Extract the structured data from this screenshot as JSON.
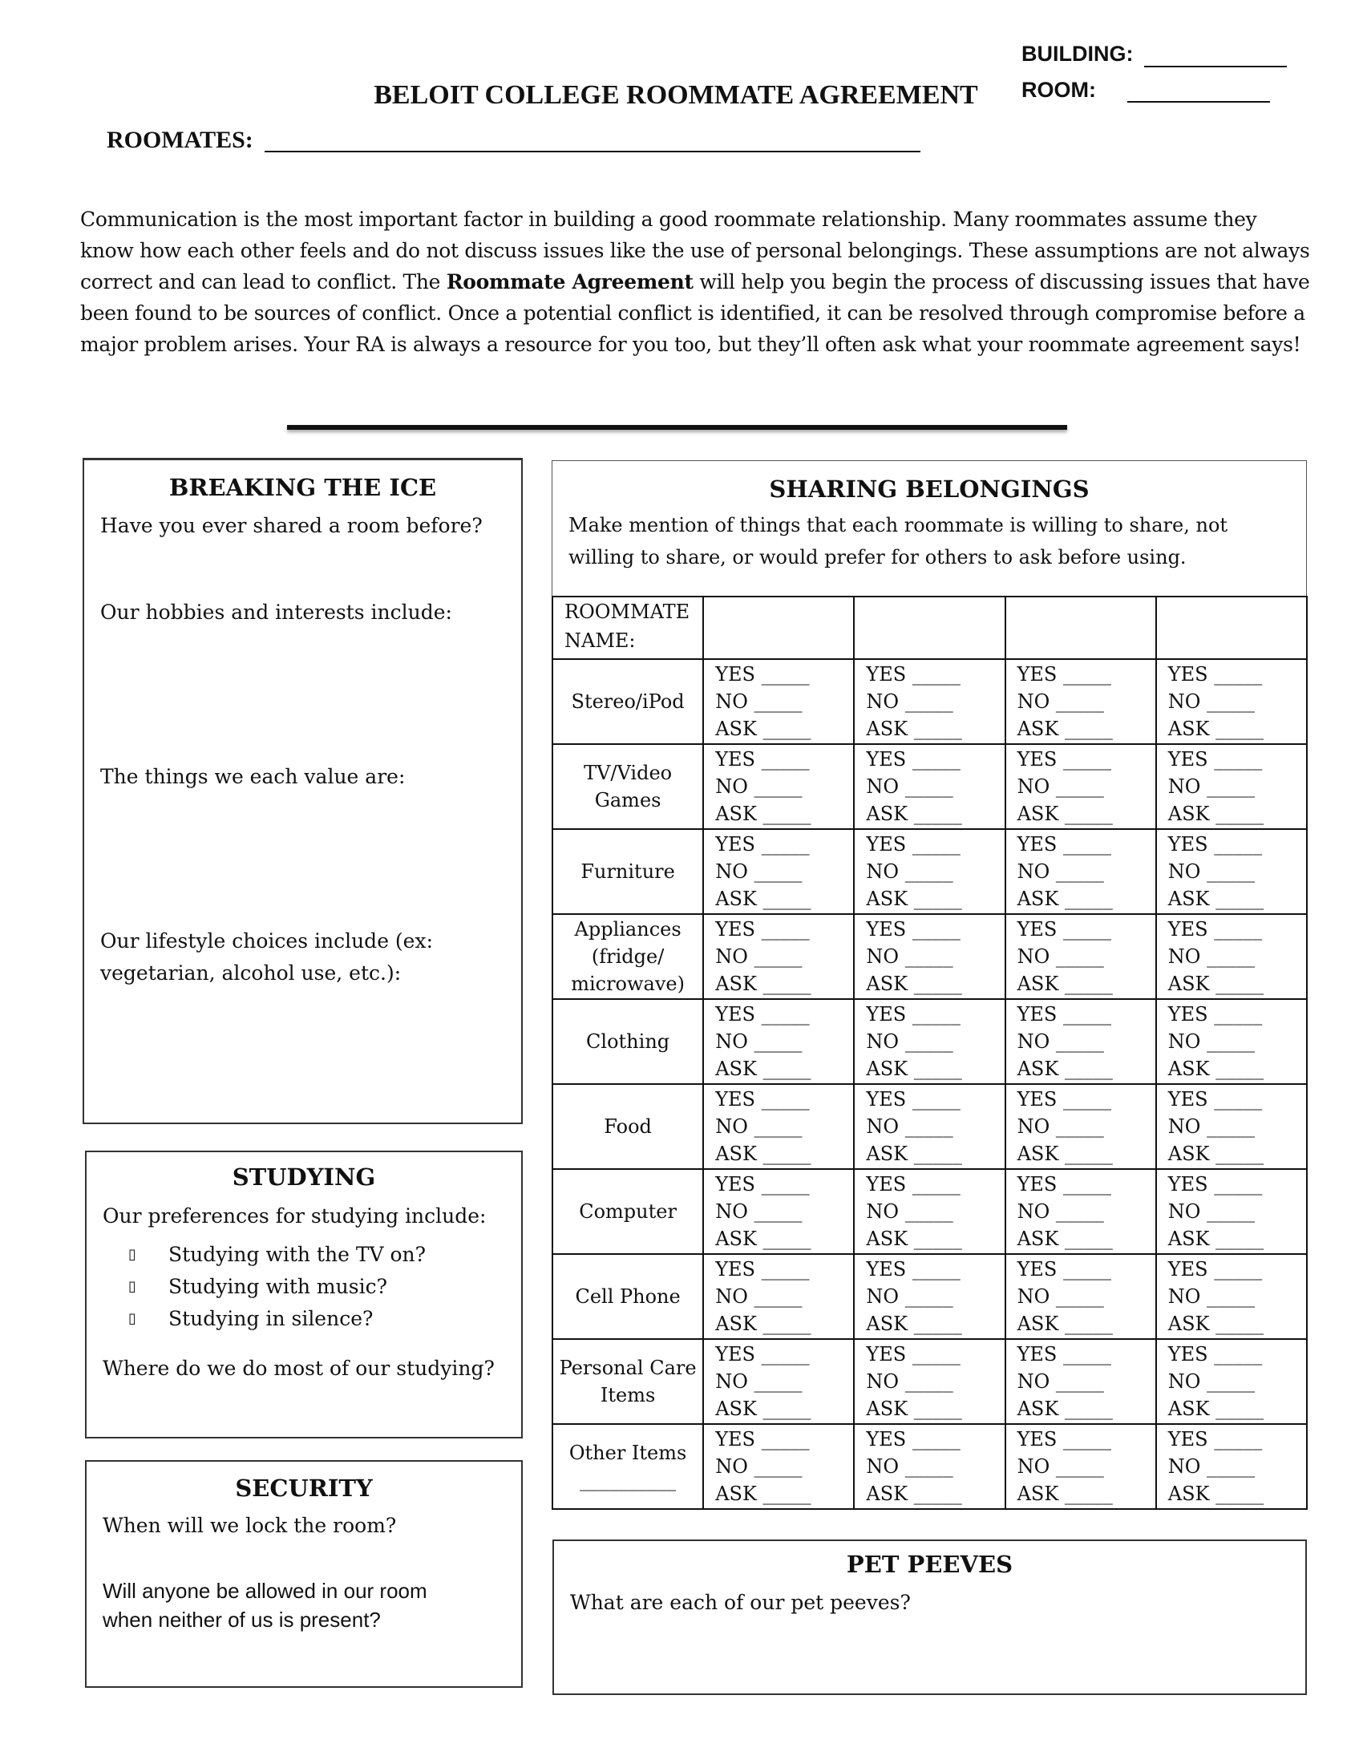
{
  "header": {
    "building_label": "BUILDING:",
    "room_label": "ROOM:",
    "title": "BELOIT COLLEGE ROOMMATE AGREEMENT",
    "roommates_label": "ROOMATES:"
  },
  "intro": {
    "before_bold": "Communication is the most important factor in building a good roommate relationship. Many roommates assume they know how each other feels and do not discuss issues like the use of personal belongings. These assumptions are not always correct and can lead to conflict. The ",
    "bold": "Roommate Agreement",
    "after_bold": " will help you begin the process of discussing issues that have been found to be sources of conflict. Once a potential conflict is identified, it can be resolved through compromise before a major problem arises. Your RA is always a resource for you too, but they’ll often ask what your roommate agreement says!"
  },
  "breaking_ice": {
    "title": "BREAKING THE ICE",
    "q1": "Have you ever shared a room before?",
    "q2": "Our hobbies and interests include:",
    "q3": "The things we each value are:",
    "q4": "Our lifestyle choices include (ex: vegetarian, alcohol use, etc.):"
  },
  "studying": {
    "title": "STUDYING",
    "intro": "Our preferences for studying include:",
    "checkbox_glyph": "▯",
    "items": [
      "Studying with the TV on?",
      "Studying with music?",
      "Studying in silence?"
    ],
    "q2": "Where do we do most of our studying?"
  },
  "security": {
    "title": "SECURITY",
    "q1": "When will we lock the room?",
    "q2": "Will anyone be allowed in our room when neither of us is present?"
  },
  "sharing": {
    "title": "SHARING BELONGINGS",
    "description": "Make mention of things that each roommate is willing to share, not willing to share, or would prefer for others to ask before using.",
    "name_header": "ROOMMATE NAME:",
    "options": [
      "YES",
      "NO",
      "ASK"
    ],
    "blank": "_____",
    "other_blank": "__________",
    "rows": [
      "Stereo/iPod",
      "TV/Video Games",
      "Furniture",
      "Appliances (fridge/ microwave)",
      "Clothing",
      "Food",
      "Computer",
      "Cell Phone",
      "Personal Care Items",
      "Other Items"
    ]
  },
  "pet_peeves": {
    "title": "PET PEEVES",
    "q1": "What are each of our pet peeves?"
  }
}
